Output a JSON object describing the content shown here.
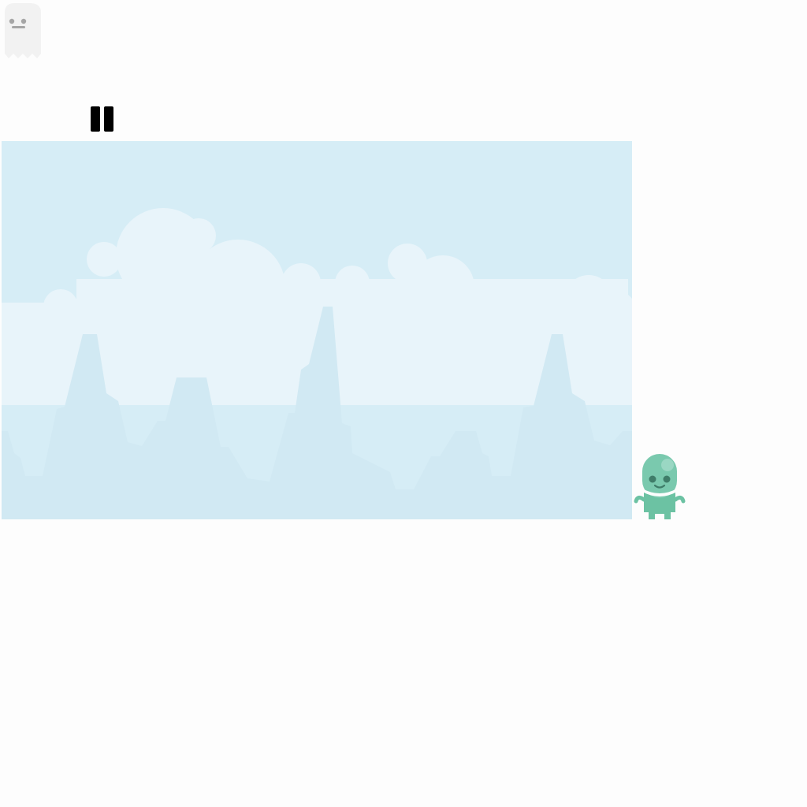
{
  "game": {
    "pause_icon": "pause-icon",
    "ghost_icon": "ghost-icon",
    "player_icon": "alien-character-icon",
    "colors": {
      "sky": "#d6edf6",
      "clouds": "#e8f4fa",
      "mountains": "#d1e9f3",
      "player": "#7ac9ae",
      "player_body": "#6cc2a3",
      "ghost": "#f2f2f2",
      "pause": "#000000"
    }
  }
}
